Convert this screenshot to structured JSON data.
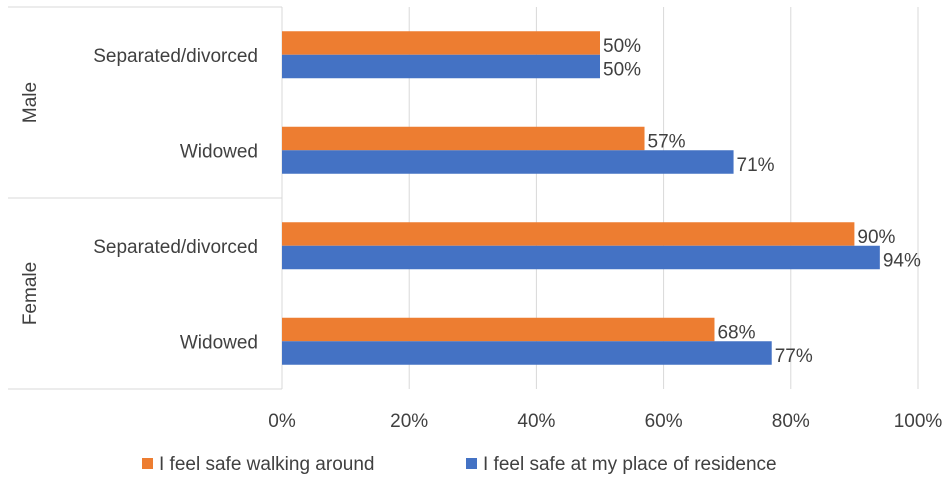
{
  "chart_data": {
    "type": "bar",
    "orientation": "horizontal",
    "groups": [
      {
        "label": "Male",
        "categories": [
          "Separated/divorced",
          "Widowed"
        ]
      },
      {
        "label": "Female",
        "categories": [
          "Separated/divorced",
          "Widowed"
        ]
      }
    ],
    "series": [
      {
        "name": "I feel safe walking around",
        "color": "#ED7D31",
        "values": [
          50,
          57,
          90,
          68
        ],
        "labels": [
          "50%",
          "57%",
          "90%",
          "68%"
        ]
      },
      {
        "name": "I feel safe at my place of residence",
        "color": "#4472C4",
        "values": [
          50,
          71,
          94,
          77
        ],
        "labels": [
          "50%",
          "71%",
          "94%",
          "77%"
        ]
      }
    ],
    "xlim": [
      0,
      100
    ],
    "xticks": [
      "0%",
      "20%",
      "40%",
      "60%",
      "80%",
      "100%"
    ],
    "grid": true,
    "legend": "bottom"
  }
}
